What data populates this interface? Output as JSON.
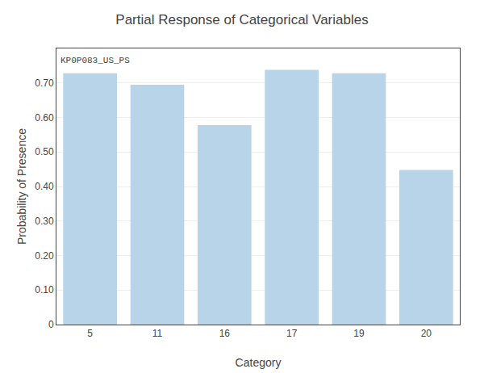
{
  "chart_data": {
    "type": "bar",
    "title": "Partial Response of Categorical Variables",
    "xlabel": "Category",
    "ylabel": "Probability of Presence",
    "categories": [
      "5",
      "11",
      "16",
      "17",
      "19",
      "20"
    ],
    "values": [
      0.728,
      0.695,
      0.578,
      0.738,
      0.728,
      0.448
    ],
    "color": "#b8d4e8",
    "annotations": [
      "KP0P083_US_PS"
    ],
    "ylim": [
      0,
      0.8
    ],
    "yticks": [
      0,
      {
        "value": 0.1,
        "label": "0.10"
      },
      {
        "value": 0.2,
        "label": "0.20"
      },
      {
        "value": 0.3,
        "label": "0.30"
      },
      {
        "value": 0.4,
        "label": "0.40"
      },
      {
        "value": 0.5,
        "label": "0.50"
      },
      {
        "value": 0.6,
        "label": "0.60"
      },
      {
        "value": 0.7,
        "label": "0.70"
      }
    ],
    "grid": true
  }
}
